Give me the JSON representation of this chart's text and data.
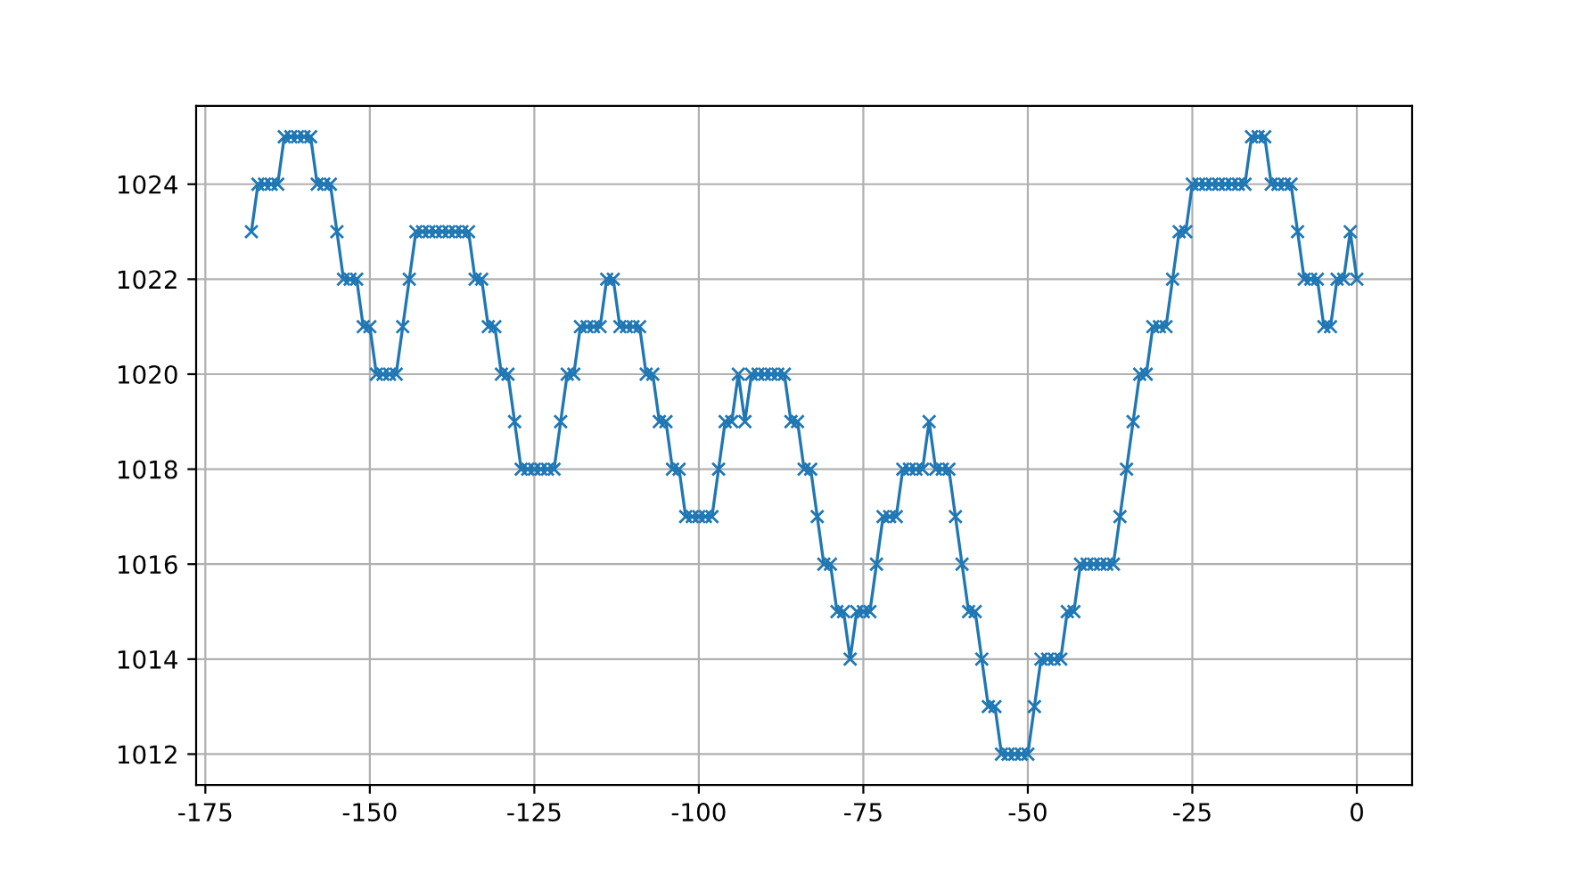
{
  "chart_data": {
    "type": "line",
    "marker": "cross",
    "grid": true,
    "x": [
      -168,
      -167,
      -166,
      -165,
      -164,
      -163,
      -162,
      -161,
      -160,
      -159,
      -158,
      -157,
      -156,
      -155,
      -154,
      -153,
      -152,
      -151,
      -150,
      -149,
      -148,
      -147,
      -146,
      -145,
      -144,
      -143,
      -142,
      -141,
      -140,
      -139,
      -138,
      -137,
      -136,
      -135,
      -134,
      -133,
      -132,
      -131,
      -130,
      -129,
      -128,
      -127,
      -126,
      -125,
      -124,
      -123,
      -122,
      -121,
      -120,
      -119,
      -118,
      -117,
      -116,
      -115,
      -114,
      -113,
      -112,
      -111,
      -110,
      -109,
      -108,
      -107,
      -106,
      -105,
      -104,
      -103,
      -102,
      -101,
      -100,
      -99,
      -98,
      -97,
      -96,
      -95,
      -94,
      -93,
      -92,
      -91,
      -90,
      -89,
      -88,
      -87,
      -86,
      -85,
      -84,
      -83,
      -82,
      -81,
      -80,
      -79,
      -78,
      -77,
      -76,
      -75,
      -74,
      -73,
      -72,
      -71,
      -70,
      -69,
      -68,
      -67,
      -66,
      -65,
      -64,
      -63,
      -62,
      -61,
      -60,
      -59,
      -58,
      -57,
      -56,
      -55,
      -54,
      -53,
      -52,
      -51,
      -50,
      -49,
      -48,
      -47,
      -46,
      -45,
      -44,
      -43,
      -42,
      -41,
      -40,
      -39,
      -38,
      -37,
      -36,
      -35,
      -34,
      -33,
      -32,
      -31,
      -30,
      -29,
      -28,
      -27,
      -26,
      -25,
      -24,
      -23,
      -22,
      -21,
      -20,
      -19,
      -18,
      -17,
      -16,
      -15,
      -14,
      -13,
      -12,
      -11,
      -10,
      -9,
      -8,
      -7,
      -6,
      -5,
      -4,
      -3,
      -2,
      -1,
      0
    ],
    "series": [
      {
        "color": "#1f77b4",
        "values": [
          1023,
          1024,
          1024,
          1024,
          1024,
          1025,
          1025,
          1025,
          1025,
          1025,
          1024,
          1024,
          1024,
          1023,
          1022,
          1022,
          1022,
          1021,
          1021,
          1020,
          1020,
          1020,
          1020,
          1021,
          1022,
          1023,
          1023,
          1023,
          1023,
          1023,
          1023,
          1023,
          1023,
          1023,
          1022,
          1022,
          1021,
          1021,
          1020,
          1020,
          1019,
          1018,
          1018,
          1018,
          1018,
          1018,
          1018,
          1019,
          1020,
          1020,
          1021,
          1021,
          1021,
          1021,
          1022,
          1022,
          1021,
          1021,
          1021,
          1021,
          1020,
          1020,
          1019,
          1019,
          1018,
          1018,
          1017,
          1017,
          1017,
          1017,
          1017,
          1018,
          1019,
          1019,
          1020,
          1019,
          1020,
          1020,
          1020,
          1020,
          1020,
          1020,
          1019,
          1019,
          1018,
          1018,
          1017,
          1016,
          1016,
          1015,
          1015,
          1014,
          1015,
          1015,
          1015,
          1016,
          1017,
          1017,
          1017,
          1018,
          1018,
          1018,
          1018,
          1019,
          1018,
          1018,
          1018,
          1017,
          1016,
          1015,
          1015,
          1014,
          1013,
          1013,
          1012,
          1012,
          1012,
          1012,
          1012,
          1013,
          1014,
          1014,
          1014,
          1014,
          1015,
          1015,
          1016,
          1016,
          1016,
          1016,
          1016,
          1016,
          1017,
          1018,
          1019,
          1020,
          1020,
          1021,
          1021,
          1021,
          1022,
          1023,
          1023,
          1024,
          1024,
          1024,
          1024,
          1024,
          1024,
          1024,
          1024,
          1024,
          1025,
          1025,
          1025,
          1024,
          1024,
          1024,
          1024,
          1023,
          1022,
          1022,
          1022,
          1021,
          1021,
          1022,
          1022,
          1023,
          1022
        ]
      }
    ],
    "xlim": [
      -176.4,
      8.4
    ],
    "ylim": [
      1011.35,
      1025.65
    ],
    "xticks": [
      -175,
      -150,
      -125,
      -100,
      -75,
      -50,
      -25,
      0
    ],
    "yticks": [
      1012,
      1014,
      1016,
      1018,
      1020,
      1022,
      1024
    ]
  }
}
